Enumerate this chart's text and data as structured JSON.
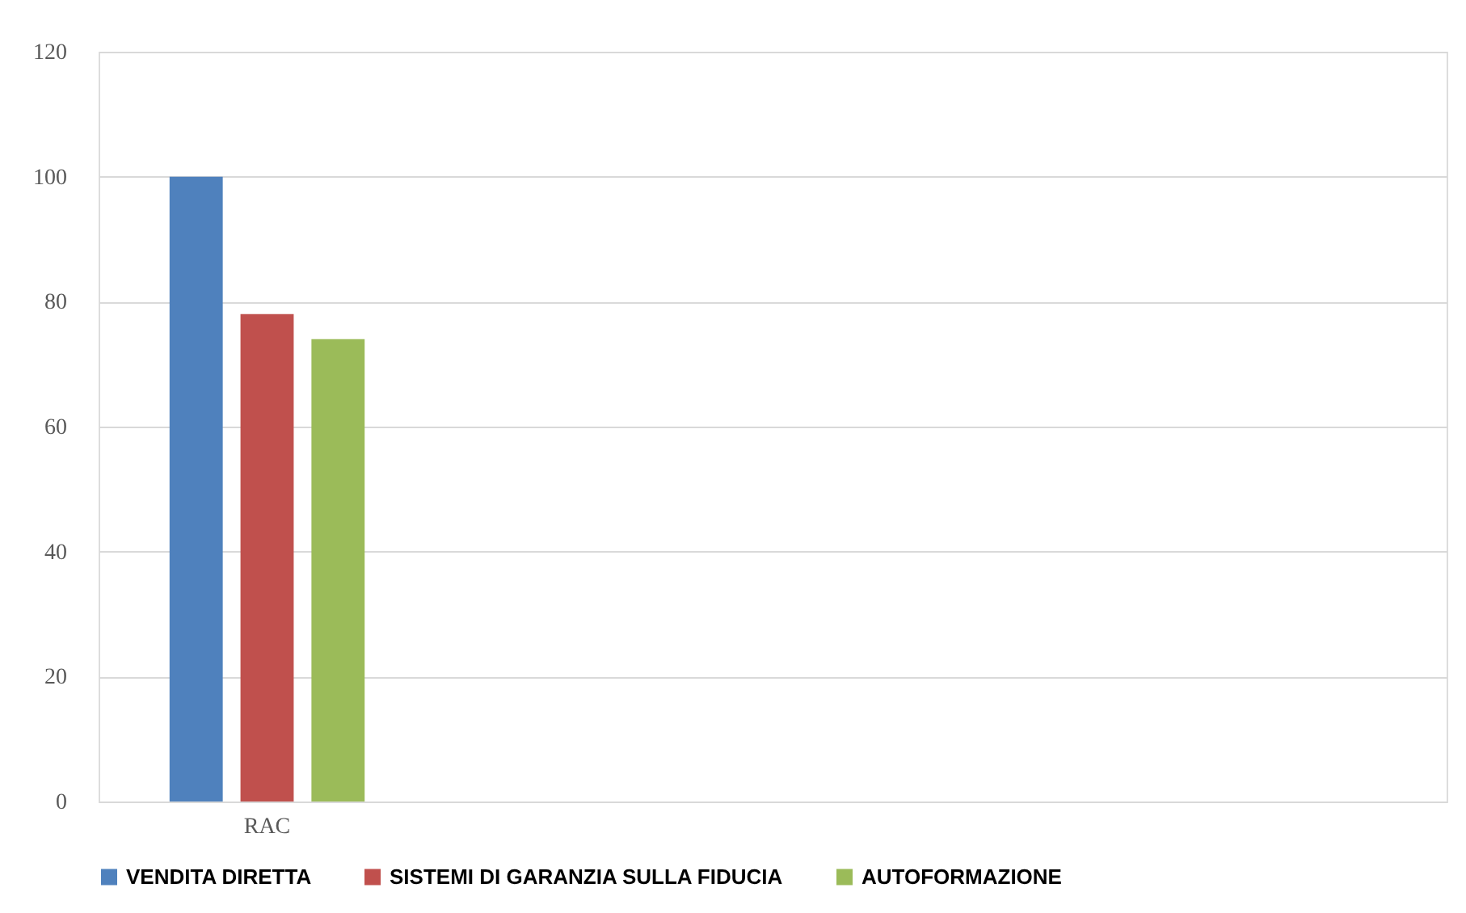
{
  "chart_data": {
    "type": "bar",
    "categories": [
      "RAC",
      null,
      null,
      null
    ],
    "series": [
      {
        "name": "VENDITA DIRETTA",
        "color": "#4f81bd",
        "values": [
          100,
          null,
          null,
          null
        ]
      },
      {
        "name": "SISTEMI DI GARANZIA SULLA FIDUCIA",
        "color": "#c0504d",
        "values": [
          78,
          null,
          null,
          null
        ]
      },
      {
        "name": "AUTOFORMAZIONE",
        "color": "#9bbb59",
        "values": [
          74,
          null,
          null,
          null
        ]
      }
    ],
    "ylim": [
      0,
      120
    ],
    "yticks": [
      0,
      20,
      40,
      60,
      80,
      100,
      120
    ],
    "grid": "y",
    "legend": "bottom"
  }
}
